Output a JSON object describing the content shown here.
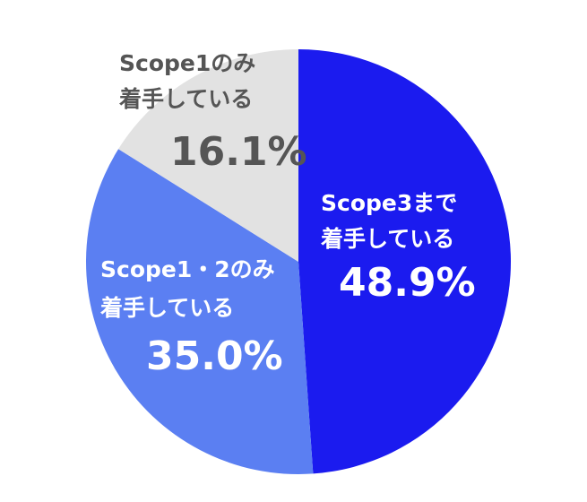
{
  "chart_data": {
    "type": "pie",
    "categories": [
      [
        "Scope3まで",
        "着手している"
      ],
      [
        "Scope1・2のみ",
        "着手している"
      ],
      [
        "Scope1のみ",
        "着手している"
      ]
    ],
    "values": [
      48.9,
      35.0,
      16.1
    ],
    "value_labels": [
      "48.9%",
      "35.0%",
      "16.1%"
    ],
    "colors": [
      "#1b1bef",
      "#5b7ff2",
      "#e2e2e2"
    ],
    "label_colors": [
      "#ffffff",
      "#ffffff",
      "#555555"
    ]
  }
}
